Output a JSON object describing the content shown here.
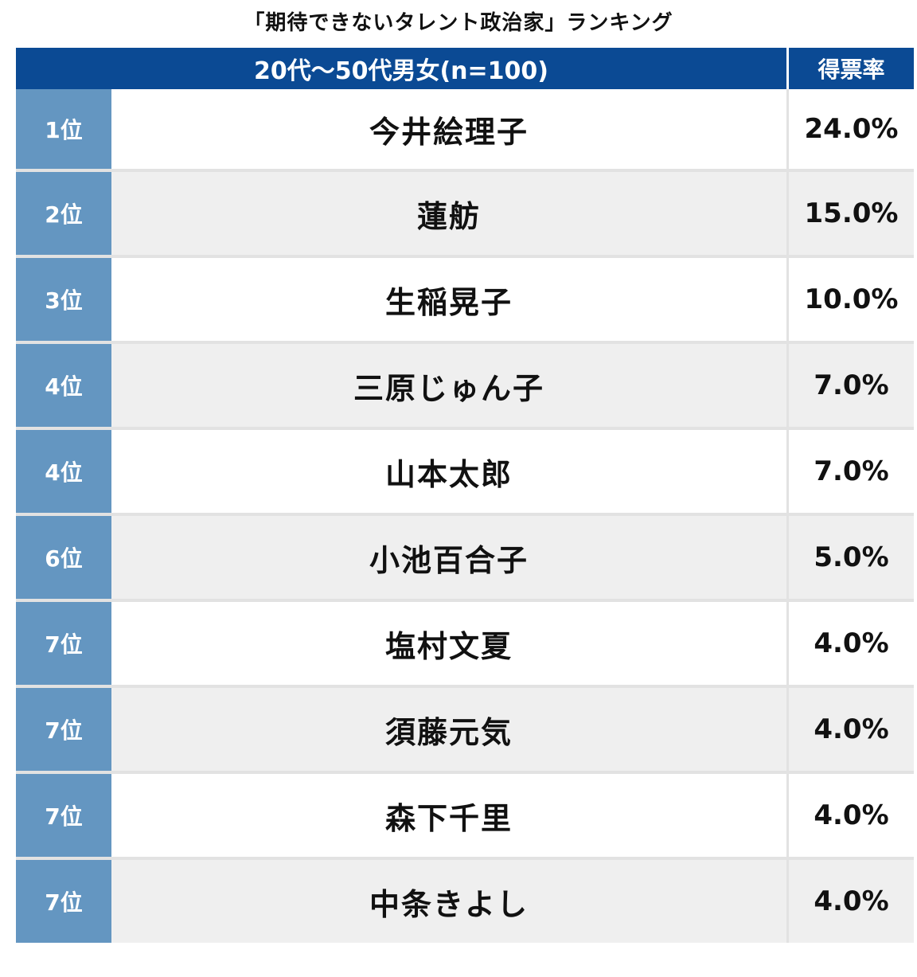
{
  "chart_data": {
    "type": "table",
    "title": "「期待できないタレント政治家」ランキング",
    "header": {
      "group": "20代〜50代男女(n=100)",
      "rate": "得票率"
    },
    "rows": [
      {
        "rank": "1位",
        "name": "今井絵理子",
        "rate": "24.0%",
        "value": 24.0
      },
      {
        "rank": "2位",
        "name": "蓮舫",
        "rate": "15.0%",
        "value": 15.0
      },
      {
        "rank": "3位",
        "name": "生稲晃子",
        "rate": "10.0%",
        "value": 10.0
      },
      {
        "rank": "4位",
        "name": "三原じゅん子",
        "rate": "7.0%",
        "value": 7.0
      },
      {
        "rank": "4位",
        "name": "山本太郎",
        "rate": "7.0%",
        "value": 7.0
      },
      {
        "rank": "6位",
        "name": "小池百合子",
        "rate": "5.0%",
        "value": 5.0
      },
      {
        "rank": "7位",
        "name": "塩村文夏",
        "rate": "4.0%",
        "value": 4.0
      },
      {
        "rank": "7位",
        "name": "須藤元気",
        "rate": "4.0%",
        "value": 4.0
      },
      {
        "rank": "7位",
        "name": "森下千里",
        "rate": "4.0%",
        "value": 4.0
      },
      {
        "rank": "7位",
        "name": "中条きよし",
        "rate": "4.0%",
        "value": 4.0
      }
    ]
  },
  "colors": {
    "header_bg": "#0b4a94",
    "rank_bg": "#6496c1",
    "alt_row_bg": "#efefef",
    "separator": "#e2e2e2"
  }
}
